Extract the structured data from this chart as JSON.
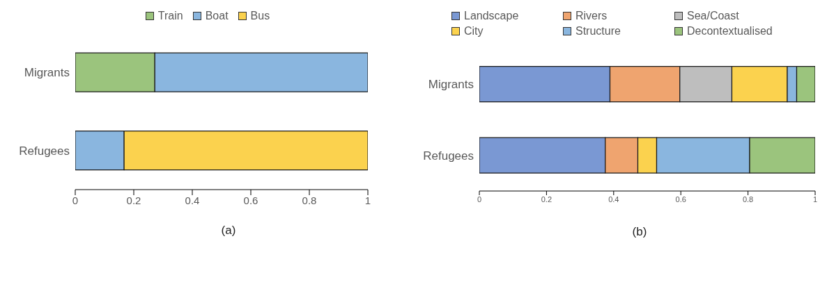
{
  "chart_data": [
    {
      "type": "bar",
      "orientation": "horizontal",
      "stacked": true,
      "categories": [
        "Migrants",
        "Refugees"
      ],
      "xlim": [
        0,
        1
      ],
      "xticks": [
        0,
        0.2,
        0.4,
        0.6,
        0.8,
        1
      ],
      "grid": false,
      "legend": "top",
      "annotations": [
        "(a)"
      ],
      "series": [
        {
          "name": "Train",
          "color": "#9bc47d",
          "values": [
            0.272,
            0
          ]
        },
        {
          "name": "Boat",
          "color": "#8ab6df",
          "values": [
            0.728,
            0.167
          ]
        },
        {
          "name": "Bus",
          "color": "#fbd24e",
          "values": [
            0,
            0.833
          ]
        }
      ]
    },
    {
      "type": "bar",
      "orientation": "horizontal",
      "stacked": true,
      "categories": [
        "Migrants",
        "Refugees"
      ],
      "xlim": [
        0,
        1
      ],
      "xticks": [
        0,
        0.2,
        0.4,
        0.6,
        0.8,
        1
      ],
      "grid": false,
      "legend": "top",
      "annotations": [
        "(b)"
      ],
      "series": [
        {
          "name": "Landscape",
          "color": "#7a98d3",
          "values": [
            0.389,
            0.375
          ]
        },
        {
          "name": "Rivers",
          "color": "#efa46f",
          "values": [
            0.208,
            0.097
          ]
        },
        {
          "name": "Sea/Coast",
          "color": "#bebebe",
          "values": [
            0.155,
            0
          ]
        },
        {
          "name": "City",
          "color": "#fbd24e",
          "values": [
            0.165,
            0.056
          ]
        },
        {
          "name": "Structure",
          "color": "#8ab6df",
          "values": [
            0.028,
            0.277
          ]
        },
        {
          "name": "Decontextualised",
          "color": "#9bc47d",
          "values": [
            0.055,
            0.195
          ]
        }
      ]
    }
  ]
}
